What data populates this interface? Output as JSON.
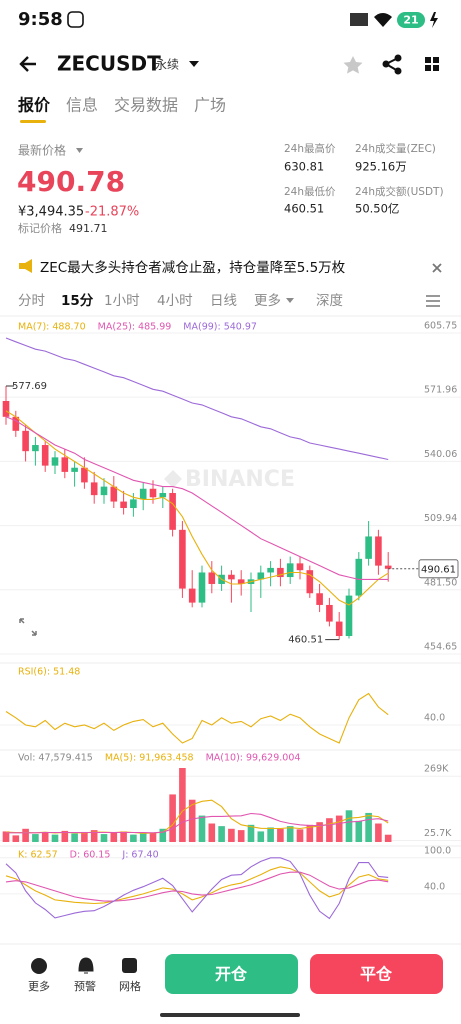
{
  "status": {
    "time": "9:58",
    "battery": "21"
  },
  "header": {
    "symbol": "ZECUSDT",
    "contract": "永续"
  },
  "tabs": [
    "报价",
    "信息",
    "交易数据",
    "广场"
  ],
  "price": {
    "label": "最新价格",
    "last": "490.78",
    "cny": "¥3,494.35",
    "change": "-21.87%",
    "mark_label": "标记价格",
    "mark": "491.71"
  },
  "stats": [
    {
      "label": "24h最高价",
      "value": "630.81"
    },
    {
      "label": "24h成交量(ZEC)",
      "value": "925.16万"
    },
    {
      "label": "24h最低价",
      "value": "460.51"
    },
    {
      "label": "24h成交额(USDT)",
      "value": "50.50亿"
    }
  ],
  "notice": "ZEC最大多头持仓者减仓止盈，持仓量降至5.5万枚",
  "intervals": [
    "分时",
    "15分",
    "1小时",
    "4小时",
    "日线",
    "更多",
    "深度"
  ],
  "watermark": "BINANCE",
  "chart_data": [
    {
      "type": "candlestick",
      "log_scale": true,
      "ylim": [
        452.2,
        612.8
      ],
      "yticks": [
        605.75,
        571.96,
        540.06,
        509.94,
        {
          "value": 481.5,
          "label": "481.50"
        },
        454.65
      ],
      "up_color": "#2ebd85",
      "down_color": "#f6465d",
      "open": [
        570,
        562,
        555,
        545,
        548,
        538,
        542,
        535,
        537,
        530,
        524,
        528,
        521,
        518,
        522,
        527,
        523,
        525,
        508,
        482,
        476,
        489,
        484,
        488,
        486,
        484,
        486,
        489,
        491,
        487,
        493,
        490,
        480,
        475,
        468,
        462,
        479,
        495,
        505,
        492
      ],
      "high": [
        577.69,
        565,
        558,
        552,
        550,
        545,
        546,
        540,
        542,
        535,
        532,
        533,
        526,
        525,
        530,
        531,
        528,
        527,
        512,
        490,
        492,
        494,
        492,
        490,
        490,
        489,
        492,
        494,
        495,
        496,
        496,
        492,
        484,
        478,
        472,
        482,
        498,
        512,
        508,
        498
      ],
      "low": [
        558,
        552,
        540,
        538,
        535,
        534,
        532,
        528,
        527,
        520,
        520,
        518,
        515,
        514,
        517,
        520,
        518,
        505,
        478,
        474,
        474,
        480,
        481,
        476,
        479,
        472,
        478,
        483,
        483,
        484,
        486,
        478,
        472,
        466,
        460.51,
        461,
        477,
        492,
        488,
        485
      ],
      "close": [
        562,
        555,
        545,
        548,
        538,
        542,
        535,
        537,
        530,
        524,
        528,
        521,
        518,
        522,
        527,
        523,
        525,
        508,
        482,
        476,
        489,
        484,
        488,
        486,
        484,
        486,
        489,
        491,
        487,
        493,
        490,
        480,
        475,
        468,
        462,
        479,
        495,
        505,
        492,
        490.61
      ],
      "high_label": "577.69",
      "low_label": "460.51",
      "last_label": "490.61",
      "series": [
        {
          "name": "MA(7): 488.70",
          "color": "#e8b10c",
          "values": [
            565,
            562,
            558,
            554,
            550,
            546,
            543,
            540,
            537,
            534,
            531,
            528,
            525,
            523,
            522,
            522,
            523,
            520,
            514,
            505,
            497,
            490,
            486,
            484,
            484,
            485,
            486,
            487,
            488,
            489,
            489,
            488,
            485,
            481,
            477,
            475,
            478,
            482,
            486,
            488.7
          ]
        },
        {
          "name": "MA(25): 485.99",
          "color": "#e056b0",
          "values": [
            562,
            560,
            557,
            554,
            551,
            548,
            546,
            544,
            541,
            539,
            537,
            535,
            533,
            531,
            530,
            529,
            528,
            528,
            527,
            525,
            522,
            519,
            516,
            513,
            510,
            507,
            504,
            502,
            500,
            498,
            496,
            494,
            492,
            490,
            488,
            487,
            486,
            486,
            486,
            485.99
          ]
        },
        {
          "name": "MA(99): 540.97",
          "color": "#9c6ad8",
          "values": [
            603,
            601,
            599,
            597,
            596,
            594,
            592,
            591,
            589,
            587,
            585,
            583,
            582,
            580,
            578,
            576,
            575,
            573,
            571,
            569,
            568,
            566,
            564,
            562,
            561,
            559,
            557,
            556,
            554,
            552,
            551,
            549,
            548,
            547,
            546,
            545,
            544,
            543,
            542,
            540.97
          ]
        }
      ]
    },
    {
      "type": "line",
      "ylim": [
        10,
        90
      ],
      "yticks": [
        {
          "value": 40,
          "label": "40.0"
        }
      ],
      "series": [
        {
          "name": "RSI(6): 51.48",
          "color": "#e8b10c",
          "values": [
            55,
            48,
            40,
            38,
            45,
            35,
            42,
            38,
            40,
            36,
            42,
            34,
            40,
            44,
            46,
            38,
            42,
            30,
            20,
            25,
            45,
            40,
            48,
            42,
            44,
            38,
            47,
            50,
            45,
            52,
            48,
            38,
            30,
            25,
            20,
            48,
            68,
            75,
            60,
            51.48
          ]
        }
      ]
    },
    {
      "type": "bar",
      "ylim": [
        20000,
        300000
      ],
      "yticks": [
        {
          "value": 269000,
          "label": "269K"
        },
        {
          "value": 25700,
          "label": "25.7K"
        }
      ],
      "series": [
        {
          "name": "Vol: 47,579.415",
          "type": "bar",
          "values": [
            60000,
            45000,
            70000,
            50000,
            55000,
            48000,
            62000,
            52000,
            58000,
            65000,
            50000,
            55000,
            60000,
            48000,
            52000,
            55000,
            70000,
            200000,
            300000,
            180000,
            120000,
            90000,
            80000,
            70000,
            65000,
            85000,
            60000,
            75000,
            70000,
            80000,
            68000,
            85000,
            95000,
            110000,
            120000,
            140000,
            100000,
            130000,
            90000,
            47579.415
          ]
        },
        {
          "name": "MA(5): 91,963.458",
          "type": "line",
          "color": "#e8b10c",
          "values": [
            58000,
            56000,
            56000,
            55000,
            57000,
            54000,
            56000,
            55000,
            55000,
            57000,
            57000,
            56000,
            58000,
            56000,
            53000,
            54000,
            57000,
            85000,
            137000,
            161000,
            174000,
            178000,
            154000,
            108000,
            85000,
            78000,
            72000,
            71000,
            71000,
            74000,
            71000,
            76000,
            80000,
            88000,
            96000,
            110000,
            113000,
            120000,
            116000,
            91963.458
          ]
        },
        {
          "name": "MA(10): 99,629.004",
          "type": "line",
          "color": "#e056b0",
          "values": [
            55000,
            55000,
            55000,
            55000,
            56000,
            56000,
            56000,
            56000,
            56000,
            56000,
            56000,
            56000,
            56000,
            56000,
            56000,
            55000,
            57000,
            70000,
            95000,
            107000,
            113000,
            117000,
            117000,
            118000,
            119000,
            128000,
            125000,
            112000,
            98000,
            90000,
            85000,
            82000,
            82000,
            85000,
            90000,
            96000,
            98000,
            105000,
            108000,
            99629.004
          ]
        }
      ]
    },
    {
      "type": "line",
      "ylim": [
        -40,
        103
      ],
      "yticks": [
        {
          "value": 100,
          "label": "100.0"
        },
        {
          "value": 40,
          "label": "40.0"
        }
      ],
      "series": [
        {
          "name": "K: 62.57",
          "color": "#e8b10c",
          "values": [
            70,
            65,
            55,
            45,
            38,
            30,
            28,
            26,
            25,
            24,
            25,
            28,
            32,
            36,
            40,
            45,
            50,
            48,
            40,
            30,
            35,
            42,
            50,
            55,
            58,
            65,
            72,
            80,
            85,
            82,
            75,
            60,
            45,
            35,
            40,
            55,
            68,
            72,
            65,
            62.57
          ]
        },
        {
          "name": "D: 60.15",
          "color": "#e056b0",
          "values": [
            60,
            62,
            60,
            55,
            50,
            45,
            40,
            35,
            32,
            30,
            28,
            28,
            29,
            31,
            34,
            38,
            42,
            45,
            44,
            40,
            38,
            39,
            43,
            47,
            51,
            55,
            61,
            67,
            73,
            76,
            76,
            71,
            62,
            53,
            48,
            50,
            56,
            62,
            63,
            60.15
          ]
        },
        {
          "name": "J: 67.40",
          "color": "#9c6ad8",
          "values": [
            90,
            75,
            45,
            25,
            14,
            0,
            4,
            8,
            11,
            12,
            19,
            28,
            38,
            46,
            52,
            59,
            66,
            54,
            32,
            10,
            29,
            48,
            64,
            71,
            72,
            85,
            94,
            100,
            100,
            94,
            73,
            38,
            11,
            -1,
            24,
            65,
            92,
            92,
            69,
            67.4
          ]
        }
      ]
    }
  ],
  "bottom": {
    "actions": [
      "更多",
      "预警",
      "网格"
    ],
    "open": "开仓",
    "close": "平仓"
  }
}
